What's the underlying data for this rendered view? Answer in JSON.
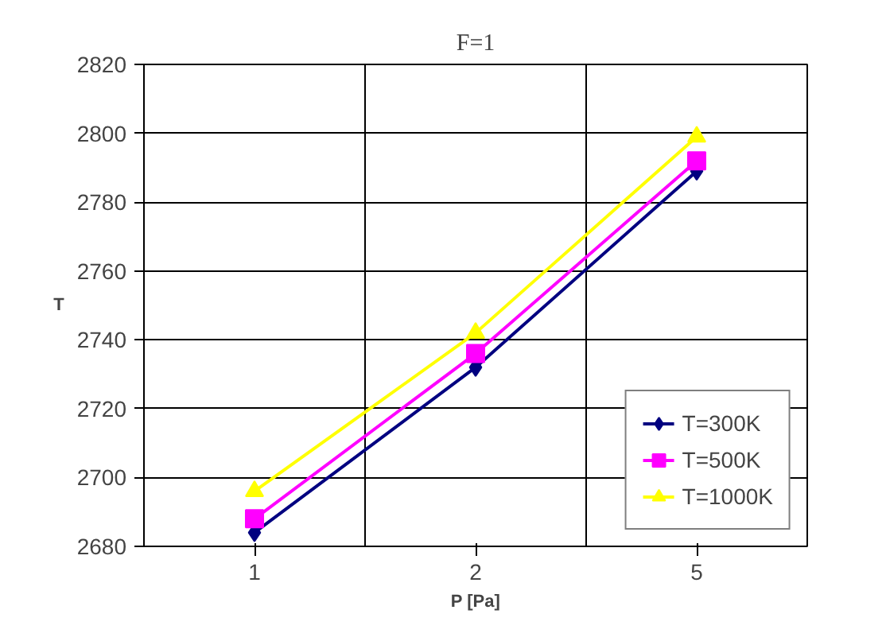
{
  "chart_data": {
    "type": "line",
    "title": "F=1",
    "xlabel": "P [Pa]",
    "ylabel": "T",
    "categories": [
      "1",
      "2",
      "5"
    ],
    "series": [
      {
        "name": "T=300K",
        "color": "#000080",
        "marker": "diamond",
        "values": [
          2684,
          2732,
          2789
        ]
      },
      {
        "name": "T=500K",
        "color": "#ff00ff",
        "marker": "square",
        "values": [
          2688,
          2736,
          2792
        ]
      },
      {
        "name": "T=1000K",
        "color": "#ffff00",
        "marker": "triangle",
        "values": [
          2696,
          2742,
          2799
        ]
      }
    ],
    "ylim": [
      2680,
      2820
    ],
    "yticks": [
      2680,
      2700,
      2720,
      2740,
      2760,
      2780,
      2800,
      2820
    ],
    "grid": true,
    "legend": "bottom right"
  }
}
